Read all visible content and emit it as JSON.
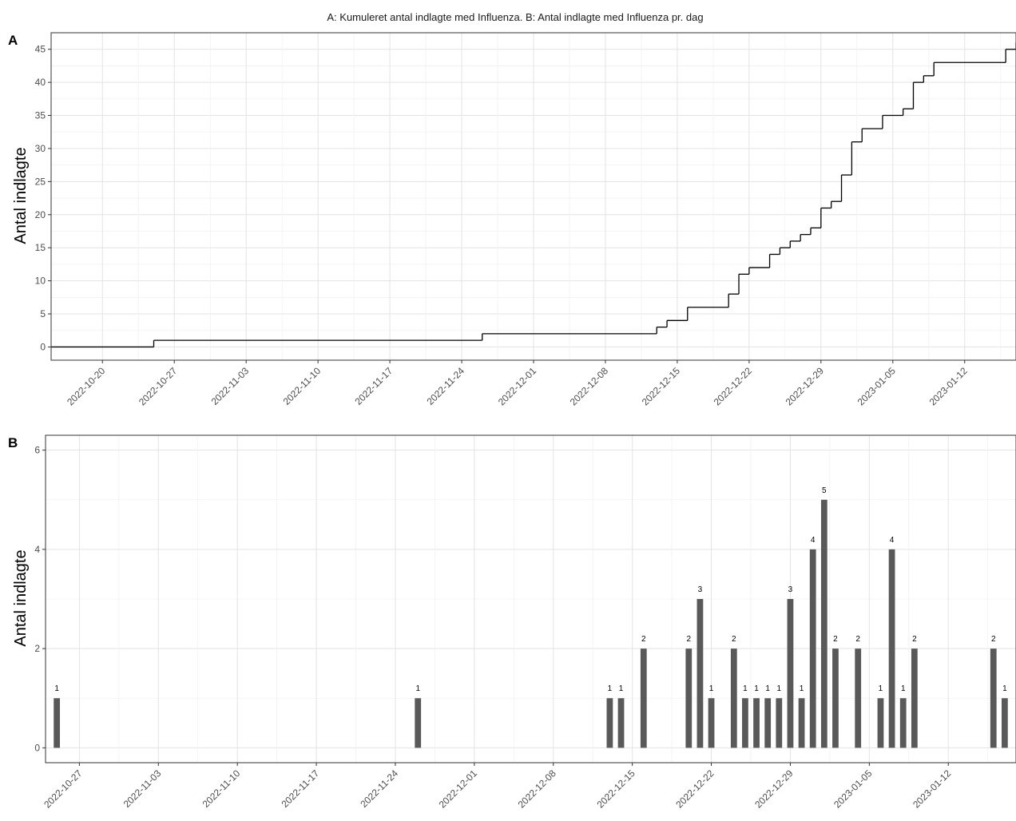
{
  "figure": {
    "title": "A: Kumuleret antal indlagte med Influenza. B: Antal indlagte med Influenza pr. dag"
  },
  "chart_data": [
    {
      "panel": "A",
      "type": "line",
      "step": true,
      "ylabel": "Antal indlagte",
      "xlabel": "",
      "xlim": [
        "2022-10-15",
        "2023-01-17"
      ],
      "ylim": [
        -2,
        47.5
      ],
      "x_ticks": [
        "2022-10-20",
        "2022-10-27",
        "2022-11-03",
        "2022-11-10",
        "2022-11-17",
        "2022-11-24",
        "2022-12-01",
        "2022-12-08",
        "2022-12-15",
        "2022-12-22",
        "2022-12-29",
        "2023-01-05",
        "2023-01-12"
      ],
      "y_ticks": [
        0,
        5,
        10,
        15,
        20,
        25,
        30,
        35,
        40,
        45
      ],
      "grid": true,
      "points": [
        [
          "2022-10-15",
          0
        ],
        [
          "2022-10-25",
          1
        ],
        [
          "2022-11-26",
          2
        ],
        [
          "2022-12-13",
          3
        ],
        [
          "2022-12-14",
          4
        ],
        [
          "2022-12-16",
          6
        ],
        [
          "2022-12-20",
          8
        ],
        [
          "2022-12-21",
          11
        ],
        [
          "2022-12-22",
          12
        ],
        [
          "2022-12-24",
          14
        ],
        [
          "2022-12-25",
          15
        ],
        [
          "2022-12-26",
          16
        ],
        [
          "2022-12-27",
          17
        ],
        [
          "2022-12-28",
          18
        ],
        [
          "2022-12-29",
          21
        ],
        [
          "2022-12-30",
          22
        ],
        [
          "2022-12-31",
          26
        ],
        [
          "2023-01-01",
          31
        ],
        [
          "2023-01-02",
          33
        ],
        [
          "2023-01-04",
          35
        ],
        [
          "2023-01-06",
          36
        ],
        [
          "2023-01-07",
          40
        ],
        [
          "2023-01-08",
          41
        ],
        [
          "2023-01-09",
          43
        ],
        [
          "2023-01-16",
          45
        ],
        [
          "2023-01-17",
          46
        ]
      ]
    },
    {
      "panel": "B",
      "type": "bar",
      "ylabel": "Antal indlagte",
      "xlabel": "",
      "xlim": [
        "2022-10-24",
        "2023-01-18"
      ],
      "ylim": [
        -0.3,
        6.3
      ],
      "x_ticks": [
        "2022-10-27",
        "2022-11-03",
        "2022-11-10",
        "2022-11-17",
        "2022-11-24",
        "2022-12-01",
        "2022-12-08",
        "2022-12-15",
        "2022-12-22",
        "2022-12-29",
        "2023-01-05",
        "2023-01-12"
      ],
      "y_ticks": [
        0,
        2,
        4,
        6
      ],
      "grid": true,
      "bars": [
        [
          "2022-10-25",
          1
        ],
        [
          "2022-11-26",
          1
        ],
        [
          "2022-12-13",
          1
        ],
        [
          "2022-12-14",
          1
        ],
        [
          "2022-12-16",
          2
        ],
        [
          "2022-12-20",
          2
        ],
        [
          "2022-12-21",
          3
        ],
        [
          "2022-12-22",
          1
        ],
        [
          "2022-12-24",
          2
        ],
        [
          "2022-12-25",
          1
        ],
        [
          "2022-12-26",
          1
        ],
        [
          "2022-12-27",
          1
        ],
        [
          "2022-12-28",
          1
        ],
        [
          "2022-12-29",
          3
        ],
        [
          "2022-12-30",
          1
        ],
        [
          "2022-12-31",
          4
        ],
        [
          "2023-01-01",
          5
        ],
        [
          "2023-01-02",
          2
        ],
        [
          "2023-01-04",
          2
        ],
        [
          "2023-01-06",
          1
        ],
        [
          "2023-01-07",
          4
        ],
        [
          "2023-01-08",
          1
        ],
        [
          "2023-01-09",
          2
        ],
        [
          "2023-01-16",
          2
        ],
        [
          "2023-01-17",
          1
        ]
      ]
    }
  ]
}
